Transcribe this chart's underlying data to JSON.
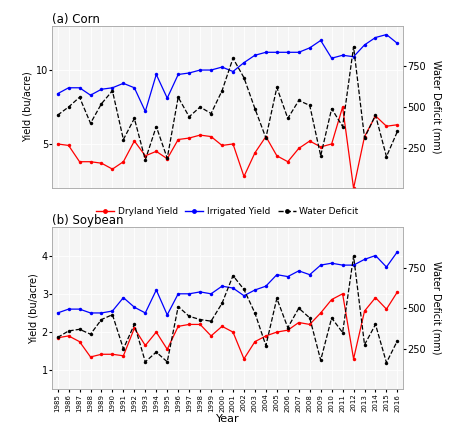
{
  "years": [
    1985,
    1986,
    1987,
    1988,
    1989,
    1990,
    1991,
    1992,
    1993,
    1994,
    1995,
    1996,
    1997,
    1998,
    1999,
    2000,
    2001,
    2002,
    2003,
    2004,
    2005,
    2006,
    2007,
    2008,
    2009,
    2010,
    2011,
    2012,
    2013,
    2014,
    2015,
    2016
  ],
  "corn_dryland": [
    5.0,
    4.9,
    3.8,
    3.8,
    3.7,
    3.3,
    3.8,
    5.2,
    4.2,
    4.5,
    4.0,
    5.3,
    5.4,
    5.6,
    5.5,
    4.9,
    5.0,
    2.8,
    4.4,
    5.5,
    4.2,
    3.8,
    4.7,
    5.2,
    4.8,
    5.0,
    7.5,
    2.0,
    5.5,
    6.9,
    6.2,
    6.3
  ],
  "corn_irrigated": [
    8.4,
    8.8,
    8.8,
    8.3,
    8.7,
    8.8,
    9.1,
    8.8,
    7.2,
    9.7,
    8.1,
    9.7,
    9.8,
    10.0,
    10.0,
    10.2,
    9.9,
    10.5,
    11.0,
    11.2,
    11.2,
    11.2,
    11.2,
    11.5,
    12.0,
    10.8,
    11.0,
    10.9,
    11.7,
    12.2,
    12.4,
    11.8
  ],
  "corn_waterdef": [
    450,
    500,
    560,
    400,
    520,
    600,
    300,
    430,
    175,
    380,
    185,
    560,
    440,
    500,
    460,
    600,
    800,
    680,
    490,
    310,
    620,
    430,
    540,
    510,
    200,
    490,
    380,
    870,
    310,
    450,
    195,
    350
  ],
  "soy_dryland": [
    1.85,
    1.9,
    1.75,
    1.35,
    1.42,
    1.42,
    1.38,
    2.1,
    1.65,
    2.0,
    1.55,
    2.15,
    2.2,
    2.2,
    1.9,
    2.15,
    2.0,
    1.3,
    1.75,
    1.9,
    2.0,
    2.05,
    2.25,
    2.2,
    2.5,
    2.85,
    3.0,
    1.3,
    2.55,
    2.9,
    2.6,
    3.05
  ],
  "soy_irrigated": [
    2.5,
    2.6,
    2.6,
    2.5,
    2.5,
    2.55,
    2.9,
    2.65,
    2.5,
    3.1,
    2.45,
    3.0,
    3.0,
    3.05,
    3.0,
    3.2,
    3.15,
    2.95,
    3.1,
    3.2,
    3.5,
    3.45,
    3.6,
    3.5,
    3.75,
    3.8,
    3.75,
    3.75,
    3.9,
    4.0,
    3.7,
    4.1
  ],
  "soy_waterdef": [
    320,
    360,
    370,
    340,
    430,
    460,
    250,
    400,
    170,
    230,
    170,
    510,
    450,
    430,
    420,
    530,
    700,
    615,
    470,
    270,
    560,
    380,
    500,
    440,
    180,
    440,
    350,
    820,
    275,
    400,
    165,
    300
  ],
  "corn_ylim": [
    2,
    13
  ],
  "corn_yticks": [
    5,
    10
  ],
  "corn_wd_ylim": [
    0,
    1000
  ],
  "corn_wd_yticks": [
    250,
    500,
    750
  ],
  "soy_ylim": [
    0.5,
    4.75
  ],
  "soy_yticks": [
    1,
    2,
    3,
    4
  ],
  "soy_wd_ylim": [
    0,
    1000
  ],
  "soy_wd_yticks": [
    250,
    500,
    750
  ],
  "color_dryland": "#ff0000",
  "color_irrigated": "#0000ff",
  "color_waterdef": "#000000",
  "legend_labels": [
    "Dryland Yield",
    "Irrigated Yield",
    "Water Deficit"
  ],
  "title_a": "(a) Corn",
  "title_b": "(b) Soybean",
  "ylabel_left": "Yield (bu/acre)",
  "ylabel_right": "Water Deficit (mm)",
  "xlabel": "Year",
  "bg_color": "#f5f5f5",
  "grid_color": "#ffffff"
}
